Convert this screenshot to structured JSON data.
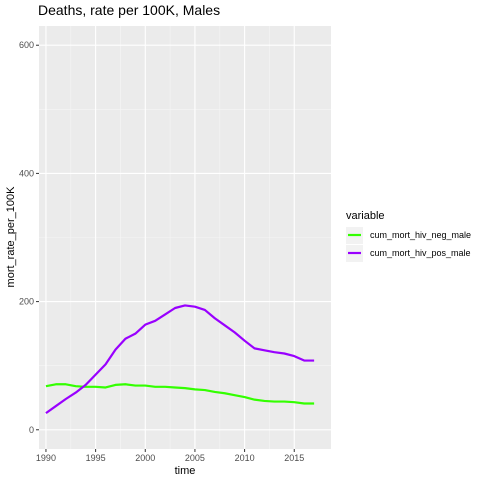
{
  "chart_data": {
    "type": "line",
    "title": "Deaths, rate per 100K, Males",
    "xlabel": "time",
    "ylabel": "mort_rate_per_100K",
    "xlim": [
      1989.3,
      2018.7
    ],
    "ylim": [
      -30,
      630
    ],
    "x_ticks": [
      1990,
      1995,
      2000,
      2005,
      2010,
      2015
    ],
    "y_ticks": [
      0,
      200,
      400,
      600
    ],
    "grid": true,
    "legend": {
      "title": "variable",
      "position": "right"
    },
    "x": [
      1990,
      1991,
      1992,
      1993,
      1994,
      1995,
      1996,
      1997,
      1998,
      1999,
      2000,
      2001,
      2002,
      2003,
      2004,
      2005,
      2006,
      2007,
      2008,
      2009,
      2010,
      2011,
      2012,
      2013,
      2014,
      2015,
      2016,
      2017
    ],
    "series": [
      {
        "name": "cum_mort_hiv_neg_male",
        "color": "#33ff00",
        "values": [
          68,
          71,
          71,
          68,
          67,
          67,
          66,
          70,
          71,
          69,
          69,
          67,
          67,
          66,
          65,
          63,
          62,
          59,
          57,
          54,
          51,
          47,
          45,
          44,
          44,
          43,
          41,
          41
        ]
      },
      {
        "name": "cum_mort_hiv_pos_male",
        "color": "#9900ff",
        "values": [
          26,
          37,
          48,
          58,
          70,
          86,
          102,
          125,
          142,
          150,
          164,
          170,
          180,
          190,
          194,
          192,
          187,
          174,
          163,
          152,
          139,
          127,
          124,
          121,
          119,
          115,
          108,
          108
        ]
      }
    ]
  }
}
